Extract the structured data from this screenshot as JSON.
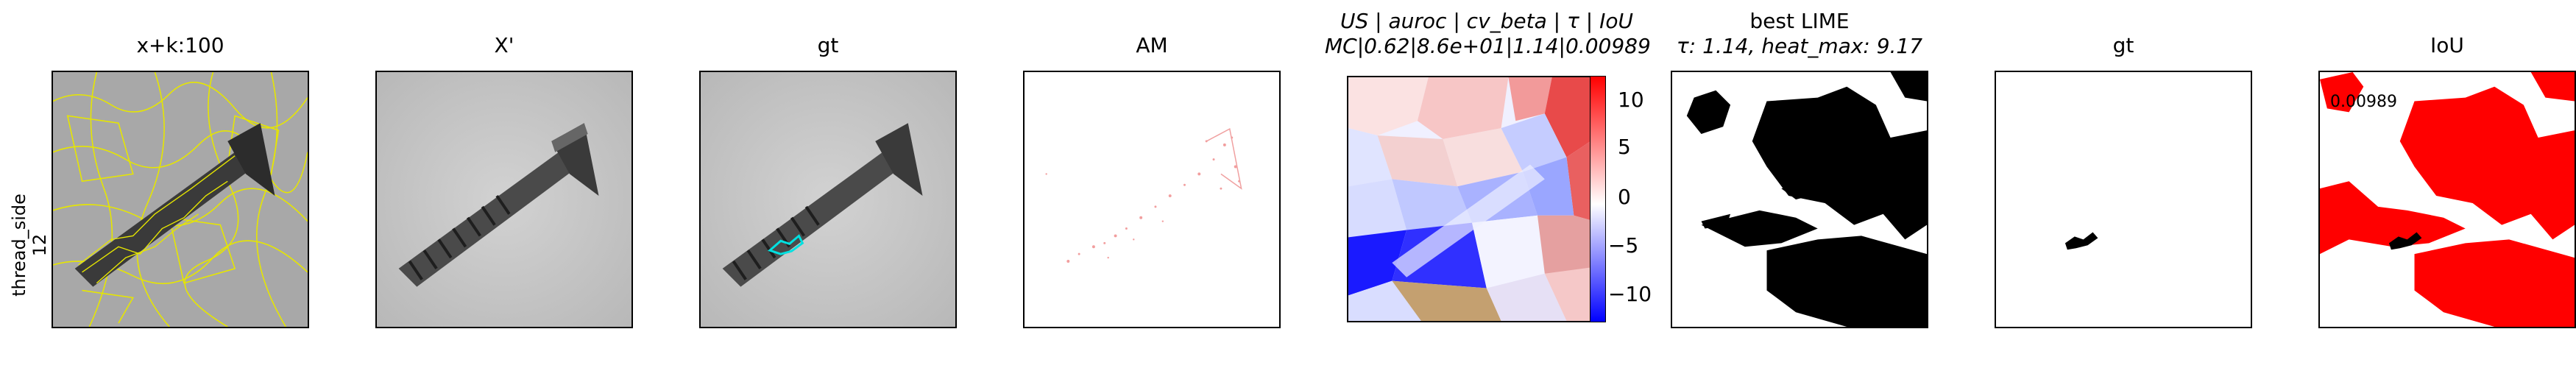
{
  "row_label": {
    "line1": "thread_side",
    "line2": "12"
  },
  "panels": [
    {
      "title": "x+k:100"
    },
    {
      "title": "X'"
    },
    {
      "title": "gt"
    },
    {
      "title": "AM"
    },
    {
      "title_line1": "US | auroc | cv_beta | τ | IoU",
      "title_line2": "MC|0.62|8.6e+01|1.14|0.00989"
    },
    {
      "title_line1": "best LIME",
      "title_line2": "τ: 1.14, heat_max: 9.17"
    },
    {
      "title": "gt"
    },
    {
      "title": "IoU"
    }
  ],
  "colorbar": {
    "ticks": [
      "10",
      "5",
      "0",
      "−5",
      "−10"
    ],
    "colors": {
      "high": "#ff0000",
      "mid": "#ffffff",
      "low": "#0000ff"
    }
  },
  "iou_annotation": "0.00989",
  "colors": {
    "segment_lines": "#e6e600",
    "gt_contour": "#00e0e0",
    "mask": "#000000",
    "iou_fill": "#ff0000"
  }
}
